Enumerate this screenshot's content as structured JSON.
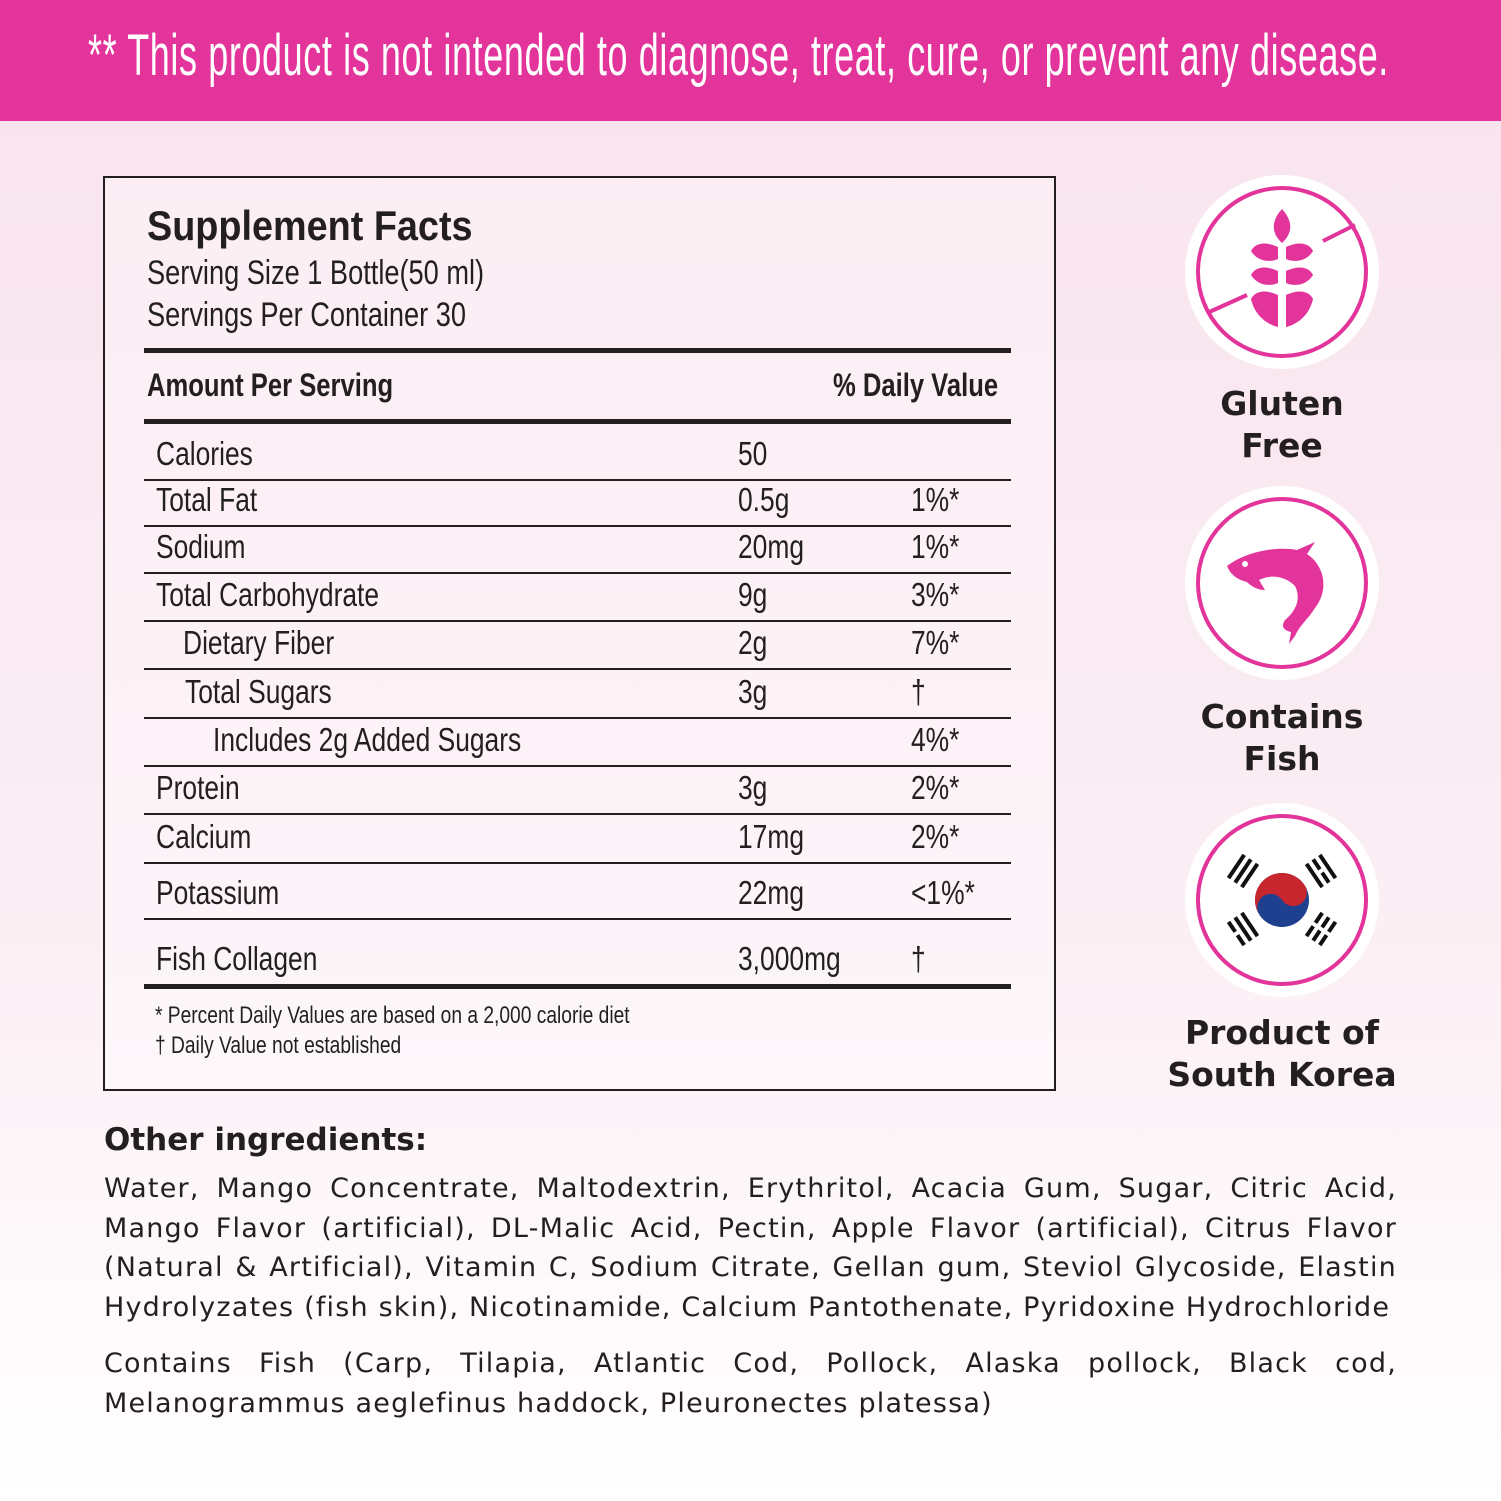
{
  "banner": {
    "text": "** This product is not intended to diagnose, treat, cure, or prevent any disease."
  },
  "facts": {
    "title": "Supplement Facts",
    "serving_size": "Serving Size 1 Bottle(50 ml)",
    "servings_per_container": "Servings Per Container 30",
    "header_amount": "Amount Per Serving",
    "header_dv": "% Daily Value",
    "rows": [
      {
        "name": "Calories",
        "amount": "50",
        "dv": ""
      },
      {
        "name": "Total Fat",
        "amount": "0.5g",
        "dv": "1%*"
      },
      {
        "name": "Sodium",
        "amount": "20mg",
        "dv": "1%*"
      },
      {
        "name": "Total Carbohydrate",
        "amount": "9g",
        "dv": "3%*"
      },
      {
        "name": "Dietary Fiber",
        "amount": "2g",
        "dv": "7%*"
      },
      {
        "name": "Total Sugars",
        "amount": "3g",
        "dv": "†"
      },
      {
        "name": "Includes 2g Added Sugars",
        "amount": "",
        "dv": "4%*"
      },
      {
        "name": "Protein",
        "amount": "3g",
        "dv": "2%*"
      },
      {
        "name": "Calcium",
        "amount": "17mg",
        "dv": "2%*"
      },
      {
        "name": "Potassium",
        "amount": "22mg",
        "dv": "<1%*"
      },
      {
        "name": "Fish Collagen",
        "amount": "3,000mg",
        "dv": "†"
      }
    ],
    "footnote1": "* Percent Daily Values are based on a 2,000 calorie diet",
    "footnote2": "† Daily Value not established"
  },
  "badges": [
    {
      "icon": "gluten-free-icon",
      "line1": "Gluten",
      "line2": "Free"
    },
    {
      "icon": "fish-icon",
      "line1": "Contains",
      "line2": "Fish"
    },
    {
      "icon": "korea-flag-icon",
      "line1": "Product of",
      "line2": "South Korea"
    }
  ],
  "ingredients": {
    "heading": "Other ingredients:",
    "text": "Water, Mango Concentrate, Maltodextrin, Erythritol, Acacia Gum, Sugar, Citric Acid, Mango Flavor (artificial), DL-Malic Acid, Pectin, Apple Flavor (artificial), Citrus Flavor (Natural & Artificial), Vitamin C, Sodium Citrate, Gellan gum, Steviol Glycoside, Elastin Hydrolyzates (fish skin), Nicotinamide, Calcium Pantothenate, Pyridoxine Hydrochloride",
    "fish": "Contains Fish (Carp, Tilapia, Atlantic Cod, Pollock, Alaska pollock, Black cod, Melanogrammus aeglefinus haddock, Pleuronectes platessa)"
  },
  "colors": {
    "accent": "#e2349a",
    "text": "#231f20"
  }
}
